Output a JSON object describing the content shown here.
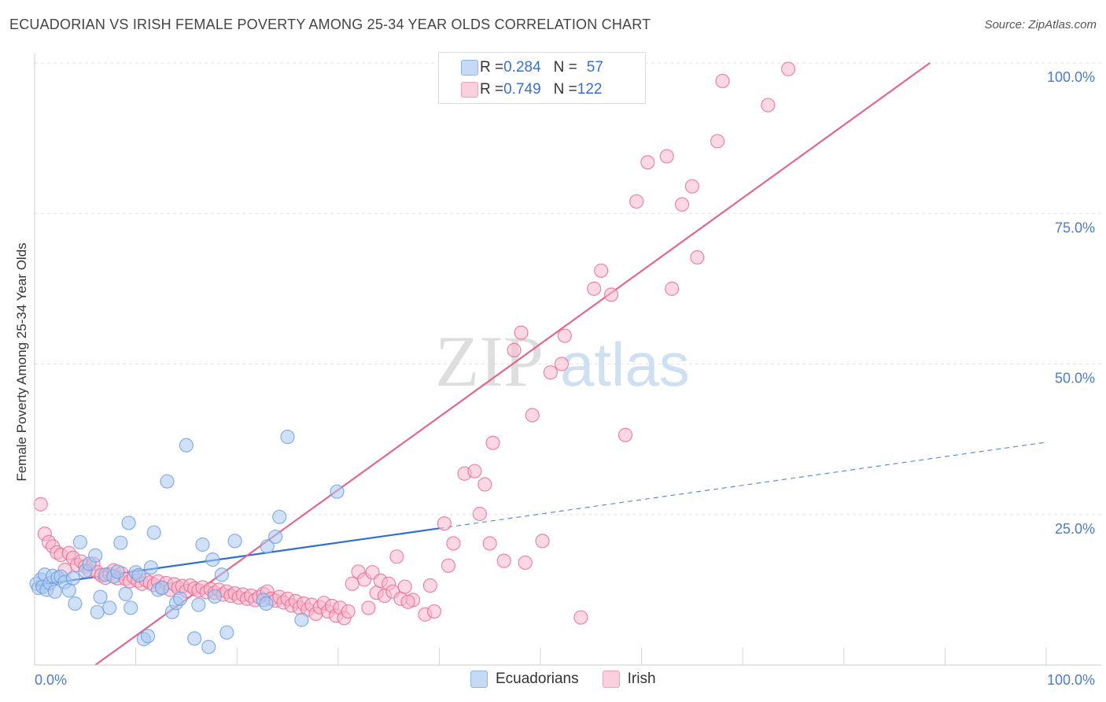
{
  "header": {
    "title": "ECUADORIAN VS IRISH FEMALE POVERTY AMONG 25-34 YEAR OLDS CORRELATION CHART",
    "source": "Source: ZipAtlas.com"
  },
  "watermark": {
    "part1": "ZIP",
    "part2": "atlas"
  },
  "legend": {
    "rows": [
      {
        "r_label": "R = ",
        "r_value": "0.284",
        "n_label": "N = ",
        "n_value": "57",
        "color": "#a9c8f0"
      },
      {
        "r_label": "R = ",
        "r_value": "0.749",
        "n_label": "N = ",
        "n_value": "122",
        "color": "#f7b8cc"
      }
    ]
  },
  "bottom_legend": [
    {
      "label": "Ecuadorians",
      "color": "#a9c8f0"
    },
    {
      "label": "Irish",
      "color": "#f7b8cc"
    }
  ],
  "chart_data": {
    "type": "scatter",
    "xlabel": "",
    "ylabel": "Female Poverty Among 25-34 Year Olds",
    "xlim": [
      0,
      100
    ],
    "ylim": [
      0,
      100
    ],
    "x_tick_labels": [
      "0.0%",
      "100.0%"
    ],
    "y_tick_labels": [
      "25.0%",
      "50.0%",
      "75.0%",
      "100.0%"
    ],
    "y_ticks": [
      25,
      50,
      75,
      100
    ],
    "grid": true,
    "legend_position": "top-center",
    "series": [
      {
        "name": "Ecuadorians",
        "color": "#6a9fe0",
        "fill": "#a9c8f0",
        "trend": {
          "x": [
            0,
            40
          ],
          "y": [
            13.2,
            22.7
          ],
          "dashed_to": [
            100,
            37.0
          ]
        },
        "points": [
          [
            0.2,
            13.5
          ],
          [
            0.4,
            12.8
          ],
          [
            0.6,
            14.2
          ],
          [
            0.8,
            13.0
          ],
          [
            1.0,
            15.0
          ],
          [
            1.2,
            12.5
          ],
          [
            1.5,
            13.6
          ],
          [
            1.8,
            14.8
          ],
          [
            2.0,
            12.2
          ],
          [
            2.3,
            14.5
          ],
          [
            2.6,
            14.7
          ],
          [
            3.0,
            13.8
          ],
          [
            3.4,
            12.4
          ],
          [
            3.8,
            14.4
          ],
          [
            4.0,
            10.2
          ],
          [
            4.5,
            20.4
          ],
          [
            5.0,
            15.6
          ],
          [
            5.4,
            16.8
          ],
          [
            6.0,
            18.2
          ],
          [
            6.2,
            8.8
          ],
          [
            6.5,
            11.3
          ],
          [
            7.0,
            15.0
          ],
          [
            7.4,
            9.5
          ],
          [
            7.8,
            14.7
          ],
          [
            8.2,
            15.5
          ],
          [
            8.5,
            20.3
          ],
          [
            9.0,
            11.8
          ],
          [
            9.3,
            23.6
          ],
          [
            9.5,
            9.5
          ],
          [
            10.0,
            15.4
          ],
          [
            10.3,
            14.9
          ],
          [
            10.8,
            4.3
          ],
          [
            11.2,
            4.8
          ],
          [
            11.5,
            16.2
          ],
          [
            11.8,
            22.0
          ],
          [
            12.2,
            12.5
          ],
          [
            12.6,
            12.8
          ],
          [
            13.1,
            30.5
          ],
          [
            13.6,
            8.8
          ],
          [
            14.0,
            10.3
          ],
          [
            14.4,
            11.0
          ],
          [
            15.0,
            36.5
          ],
          [
            15.8,
            4.4
          ],
          [
            16.2,
            10.0
          ],
          [
            16.6,
            20.0
          ],
          [
            17.2,
            3.0
          ],
          [
            17.8,
            11.4
          ],
          [
            18.5,
            15.0
          ],
          [
            17.6,
            17.5
          ],
          [
            19.0,
            5.4
          ],
          [
            19.8,
            20.6
          ],
          [
            22.6,
            10.8
          ],
          [
            22.9,
            10.2
          ],
          [
            23.0,
            19.7
          ],
          [
            23.8,
            21.3
          ],
          [
            24.2,
            24.6
          ],
          [
            25.0,
            37.9
          ],
          [
            26.4,
            7.5
          ],
          [
            29.9,
            28.8
          ]
        ]
      },
      {
        "name": "Irish",
        "color": "#e96a92",
        "fill": "#f7b8cc",
        "trend": {
          "x": [
            6,
            88.5
          ],
          "y": [
            0,
            100
          ]
        },
        "points": [
          [
            0.6,
            26.7
          ],
          [
            1.0,
            21.8
          ],
          [
            1.4,
            20.4
          ],
          [
            1.8,
            19.7
          ],
          [
            2.2,
            18.7
          ],
          [
            2.6,
            18.3
          ],
          [
            3.0,
            15.8
          ],
          [
            3.4,
            18.6
          ],
          [
            3.8,
            17.8
          ],
          [
            4.2,
            16.6
          ],
          [
            4.6,
            17.2
          ],
          [
            5.0,
            16.4
          ],
          [
            5.4,
            15.7
          ],
          [
            5.8,
            16.8
          ],
          [
            6.2,
            15.4
          ],
          [
            6.6,
            14.9
          ],
          [
            7.0,
            14.5
          ],
          [
            7.4,
            15.1
          ],
          [
            7.8,
            15.7
          ],
          [
            8.2,
            14.4
          ],
          [
            8.6,
            15.2
          ],
          [
            9.0,
            14.3
          ],
          [
            9.4,
            13.9
          ],
          [
            9.8,
            14.6
          ],
          [
            10.2,
            14.0
          ],
          [
            10.6,
            13.5
          ],
          [
            11.0,
            14.1
          ],
          [
            11.4,
            13.7
          ],
          [
            11.8,
            13.3
          ],
          [
            12.2,
            13.9
          ],
          [
            12.6,
            12.9
          ],
          [
            13.0,
            13.6
          ],
          [
            13.4,
            12.5
          ],
          [
            13.8,
            13.4
          ],
          [
            14.2,
            12.8
          ],
          [
            14.6,
            13.1
          ],
          [
            15.0,
            12.3
          ],
          [
            15.4,
            13.2
          ],
          [
            15.8,
            12.7
          ],
          [
            16.2,
            12.4
          ],
          [
            16.6,
            12.9
          ],
          [
            17.0,
            12.1
          ],
          [
            17.4,
            12.6
          ],
          [
            17.8,
            12.0
          ],
          [
            18.2,
            12.5
          ],
          [
            18.6,
            11.7
          ],
          [
            19.0,
            12.2
          ],
          [
            19.4,
            11.5
          ],
          [
            19.8,
            11.9
          ],
          [
            20.2,
            11.2
          ],
          [
            20.6,
            11.7
          ],
          [
            21.0,
            11.0
          ],
          [
            21.4,
            11.5
          ],
          [
            21.8,
            10.8
          ],
          [
            22.2,
            11.3
          ],
          [
            22.6,
            11.8
          ],
          [
            23.0,
            12.2
          ],
          [
            23.4,
            11.0
          ],
          [
            23.8,
            10.7
          ],
          [
            24.2,
            11.3
          ],
          [
            24.6,
            10.4
          ],
          [
            25.0,
            11.0
          ],
          [
            25.4,
            9.9
          ],
          [
            25.8,
            10.6
          ],
          [
            26.2,
            9.5
          ],
          [
            26.6,
            10.2
          ],
          [
            27.0,
            9.2
          ],
          [
            27.4,
            10.0
          ],
          [
            27.8,
            8.5
          ],
          [
            28.2,
            9.6
          ],
          [
            28.6,
            10.3
          ],
          [
            29.0,
            8.9
          ],
          [
            29.4,
            9.8
          ],
          [
            29.8,
            8.2
          ],
          [
            30.2,
            9.5
          ],
          [
            30.6,
            7.8
          ],
          [
            31.0,
            8.9
          ],
          [
            31.4,
            13.5
          ],
          [
            32.0,
            15.5
          ],
          [
            32.6,
            14.2
          ],
          [
            33.0,
            9.5
          ],
          [
            33.4,
            15.4
          ],
          [
            33.8,
            12.0
          ],
          [
            34.2,
            14.0
          ],
          [
            34.6,
            11.5
          ],
          [
            35.0,
            13.5
          ],
          [
            35.4,
            12.2
          ],
          [
            35.8,
            18.0
          ],
          [
            36.2,
            11.0
          ],
          [
            36.6,
            13.0
          ],
          [
            37.4,
            10.8
          ],
          [
            36.9,
            10.5
          ],
          [
            38.6,
            8.4
          ],
          [
            39.1,
            13.2
          ],
          [
            39.5,
            8.9
          ],
          [
            40.5,
            23.5
          ],
          [
            40.9,
            16.5
          ],
          [
            41.4,
            20.2
          ],
          [
            42.5,
            31.8
          ],
          [
            43.5,
            32.2
          ],
          [
            44.0,
            25.1
          ],
          [
            44.5,
            30.0
          ],
          [
            45.0,
            20.2
          ],
          [
            45.3,
            36.9
          ],
          [
            46.4,
            17.3
          ],
          [
            48.1,
            55.2
          ],
          [
            47.4,
            52.3
          ],
          [
            48.5,
            17.0
          ],
          [
            49.2,
            41.5
          ],
          [
            50.2,
            20.6
          ],
          [
            51.0,
            48.6
          ],
          [
            52.1,
            50.0
          ],
          [
            52.4,
            54.7
          ],
          [
            54.0,
            7.9
          ],
          [
            55.3,
            62.5
          ],
          [
            56.0,
            65.5
          ],
          [
            57.0,
            61.5
          ],
          [
            58.4,
            38.2
          ],
          [
            59.5,
            77.0
          ],
          [
            60.6,
            83.5
          ],
          [
            62.5,
            84.5
          ],
          [
            63.0,
            62.5
          ],
          [
            64.0,
            76.5
          ],
          [
            65.0,
            79.5
          ],
          [
            65.5,
            67.7
          ],
          [
            67.5,
            87.0
          ],
          [
            68.0,
            97.0
          ],
          [
            72.5,
            93.0
          ],
          [
            74.5,
            99.0
          ]
        ]
      }
    ]
  }
}
